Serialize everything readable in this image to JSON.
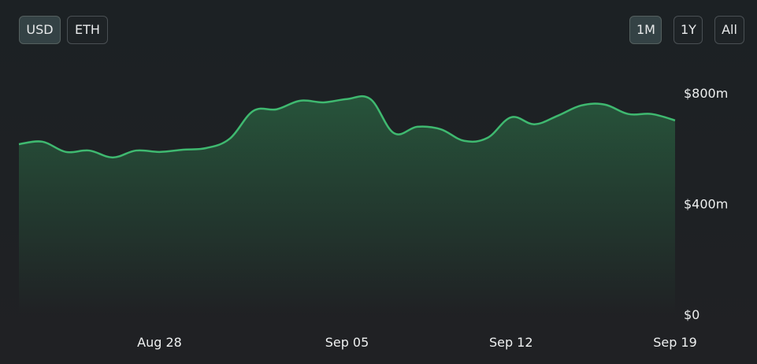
{
  "controls": {
    "currency": [
      "USD",
      "ETH"
    ],
    "range": [
      "1M",
      "1Y",
      "All"
    ]
  },
  "chart_data": {
    "type": "area",
    "categories": [
      null,
      null,
      null,
      null,
      null,
      null,
      "Aug 28",
      null,
      null,
      null,
      null,
      null,
      null,
      null,
      "Sep 05",
      null,
      null,
      null,
      null,
      null,
      null,
      "Sep 12",
      null,
      null,
      null,
      null,
      null,
      null,
      "Sep 19"
    ],
    "values": [
      615,
      624,
      587,
      592,
      567,
      592,
      587,
      595,
      601,
      635,
      735,
      741,
      772,
      766,
      778,
      778,
      655,
      678,
      669,
      627,
      638,
      712,
      687,
      718,
      755,
      758,
      724,
      724,
      701
    ],
    "color": "#3fb970",
    "ylim": [
      0,
      800
    ],
    "yticks": [
      {
        "value": 0,
        "label": "$0"
      },
      {
        "value": 400,
        "label": "$400m"
      },
      {
        "value": 800,
        "label": "$800m"
      }
    ]
  }
}
